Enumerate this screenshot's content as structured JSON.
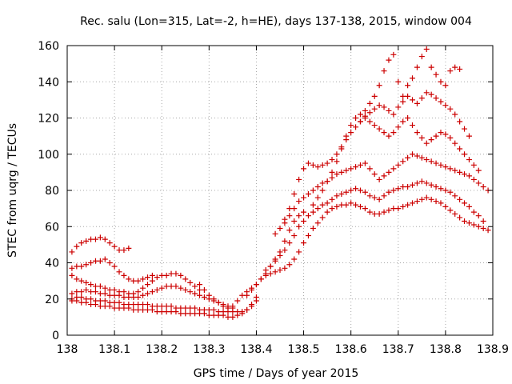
{
  "chart_data": {
    "type": "scatter",
    "title": "Rec. salu (Lon=315, Lat=-2, h=HE), days 137-138, 2015, window 004",
    "xlabel": "GPS time / Days of year 2015",
    "ylabel": "STEC from uqrg / TECUs",
    "xlim": [
      138,
      138.9
    ],
    "ylim": [
      0,
      160
    ],
    "xticks": [
      "138",
      "138.1",
      "138.2",
      "138.3",
      "138.4",
      "138.5",
      "138.6",
      "138.7",
      "138.8",
      "138.9"
    ],
    "yticks": [
      "0",
      "20",
      "40",
      "60",
      "80",
      "100",
      "120",
      "140",
      "160"
    ],
    "grid": true,
    "marker": "plus",
    "color": "#cc0000",
    "series": [
      {
        "x": [
          138.01,
          138.02,
          138.03,
          138.04,
          138.05,
          138.06,
          138.07,
          138.08,
          138.09,
          138.1,
          138.11,
          138.12,
          138.13
        ],
        "y": [
          46,
          49,
          51,
          52,
          53,
          53,
          54,
          53,
          51,
          49,
          47,
          47,
          48
        ]
      },
      {
        "x": [
          138.01,
          138.02,
          138.03,
          138.04,
          138.05,
          138.06,
          138.07,
          138.08,
          138.09,
          138.1,
          138.11,
          138.12,
          138.13,
          138.14,
          138.15,
          138.16,
          138.17,
          138.18
        ],
        "y": [
          37,
          38,
          38,
          39,
          40,
          41,
          41,
          42,
          40,
          38,
          35,
          33,
          31,
          30,
          30,
          31,
          32,
          33
        ]
      },
      {
        "x": [
          138.01,
          138.02,
          138.03,
          138.04,
          138.05,
          138.06,
          138.07,
          138.08,
          138.09,
          138.1,
          138.11,
          138.12,
          138.13,
          138.14,
          138.15,
          138.16,
          138.17,
          138.18,
          138.19,
          138.2,
          138.21,
          138.22,
          138.23,
          138.24,
          138.25,
          138.26,
          138.27,
          138.28
        ],
        "y": [
          33,
          31,
          30,
          29,
          28,
          27,
          27,
          26,
          25,
          25,
          24,
          24,
          23,
          23,
          24,
          26,
          28,
          30,
          32,
          33,
          33,
          34,
          34,
          33,
          31,
          29,
          27,
          25
        ]
      },
      {
        "x": [
          138.01,
          138.02,
          138.03,
          138.04,
          138.05,
          138.06,
          138.07,
          138.08,
          138.09,
          138.1,
          138.11,
          138.12,
          138.13,
          138.14,
          138.15,
          138.16,
          138.17,
          138.18,
          138.19,
          138.2,
          138.21,
          138.22,
          138.23,
          138.24,
          138.25,
          138.26,
          138.27,
          138.28,
          138.29,
          138.3,
          138.31,
          138.32,
          138.33,
          138.34,
          138.35
        ],
        "y": [
          23,
          24,
          24,
          25,
          24,
          24,
          23,
          23,
          22,
          22,
          22,
          21,
          21,
          21,
          21,
          22,
          23,
          24,
          25,
          26,
          27,
          27,
          27,
          26,
          25,
          24,
          23,
          22,
          21,
          20,
          19,
          18,
          17,
          16,
          15
        ]
      },
      {
        "x": [
          138.01,
          138.02,
          138.03,
          138.04,
          138.05,
          138.06,
          138.07,
          138.08,
          138.09,
          138.1,
          138.11,
          138.12,
          138.13,
          138.14,
          138.15,
          138.16,
          138.17,
          138.18,
          138.19,
          138.2,
          138.21,
          138.22,
          138.23,
          138.24,
          138.25,
          138.26,
          138.27,
          138.28,
          138.29,
          138.3,
          138.31,
          138.32,
          138.33,
          138.34,
          138.35,
          138.36,
          138.37,
          138.38,
          138.39,
          138.4
        ],
        "y": [
          20,
          21,
          21,
          20,
          20,
          19,
          19,
          19,
          18,
          18,
          18,
          17,
          17,
          17,
          17,
          17,
          17,
          16,
          16,
          16,
          16,
          16,
          15,
          15,
          15,
          15,
          15,
          14,
          14,
          14,
          14,
          13,
          13,
          13,
          13,
          13,
          13,
          14,
          16,
          19
        ]
      },
      {
        "x": [
          138.01,
          138.02,
          138.03,
          138.04,
          138.05,
          138.06,
          138.07,
          138.08,
          138.09,
          138.1,
          138.11,
          138.12,
          138.13,
          138.14,
          138.15,
          138.16,
          138.17,
          138.18,
          138.19,
          138.2,
          138.21,
          138.22,
          138.23,
          138.24,
          138.25,
          138.26,
          138.27,
          138.28,
          138.29,
          138.3,
          138.31,
          138.32,
          138.33,
          138.34,
          138.35,
          138.36,
          138.37,
          138.38,
          138.39,
          138.4
        ],
        "y": [
          19,
          19,
          18,
          18,
          17,
          17,
          16,
          16,
          16,
          15,
          15,
          15,
          15,
          14,
          14,
          14,
          14,
          14,
          13,
          13,
          13,
          13,
          13,
          12,
          12,
          12,
          12,
          12,
          12,
          11,
          11,
          11,
          11,
          10,
          10,
          11,
          12,
          14,
          17,
          21
        ]
      },
      {
        "x": [
          138.28,
          138.29,
          138.3,
          138.31,
          138.32,
          138.33,
          138.34,
          138.35,
          138.36,
          138.37,
          138.38,
          138.39,
          138.4,
          138.41,
          138.42,
          138.43,
          138.44,
          138.45,
          138.46,
          138.47,
          138.48,
          138.49,
          138.5
        ],
        "y": [
          28,
          25,
          22,
          20,
          18,
          16,
          15,
          16,
          19,
          22,
          24,
          26,
          28,
          31,
          34,
          38,
          42,
          46,
          52,
          58,
          63,
          66,
          68
        ]
      },
      {
        "x": [
          138.38,
          138.39,
          138.4,
          138.41,
          138.42,
          138.43,
          138.44,
          138.45,
          138.46,
          138.47,
          138.48,
          138.49,
          138.5,
          138.51,
          138.52,
          138.53,
          138.54,
          138.55,
          138.56,
          138.57,
          138.58,
          138.59,
          138.6,
          138.61,
          138.62,
          138.63,
          138.64,
          138.65,
          138.66,
          138.67,
          138.68,
          138.69,
          138.7,
          138.71,
          138.72,
          138.73,
          138.74,
          138.75,
          138.76,
          138.77,
          138.78,
          138.79,
          138.8,
          138.81,
          138.82,
          138.83,
          138.84,
          138.85,
          138.86,
          138.87,
          138.88,
          138.89
        ],
        "y": [
          22,
          25,
          28,
          31,
          33,
          34,
          35,
          36,
          37,
          39,
          42,
          46,
          51,
          55,
          59,
          62,
          65,
          68,
          70,
          71,
          72,
          72,
          73,
          72,
          71,
          70,
          68,
          67,
          67,
          68,
          69,
          70,
          70,
          71,
          72,
          73,
          74,
          75,
          76,
          75,
          74,
          73,
          71,
          69,
          67,
          65,
          63,
          62,
          61,
          60,
          59,
          58
        ]
      },
      {
        "x": [
          138.42,
          138.43,
          138.44,
          138.45,
          138.46,
          138.47,
          138.48,
          138.49,
          138.5,
          138.51,
          138.52,
          138.53,
          138.54,
          138.55,
          138.56,
          138.57,
          138.58,
          138.59,
          138.6,
          138.61,
          138.62,
          138.63,
          138.64,
          138.65,
          138.66,
          138.67,
          138.68,
          138.69,
          138.7,
          138.71,
          138.72,
          138.73,
          138.74,
          138.75,
          138.76,
          138.77,
          138.78,
          138.79,
          138.8,
          138.81,
          138.82,
          138.83,
          138.84,
          138.85,
          138.86,
          138.87,
          138.88
        ],
        "y": [
          36,
          38,
          41,
          44,
          47,
          51,
          55,
          60,
          63,
          66,
          68,
          70,
          72,
          73,
          75,
          77,
          78,
          79,
          80,
          81,
          80,
          79,
          77,
          76,
          75,
          77,
          79,
          80,
          81,
          82,
          82,
          83,
          84,
          85,
          84,
          83,
          82,
          81,
          80,
          79,
          77,
          75,
          73,
          71,
          68,
          66,
          63
        ]
      },
      {
        "x": [
          138.44,
          138.45,
          138.46,
          138.47,
          138.48,
          138.49,
          138.5,
          138.51,
          138.52,
          138.53,
          138.54,
          138.55,
          138.56,
          138.57,
          138.58,
          138.59,
          138.6,
          138.61,
          138.62,
          138.63,
          138.64,
          138.65,
          138.66,
          138.67,
          138.68,
          138.69,
          138.7,
          138.71,
          138.72,
          138.73,
          138.74,
          138.75,
          138.76,
          138.77,
          138.78,
          138.79,
          138.8,
          138.81,
          138.82,
          138.83,
          138.84,
          138.85,
          138.86,
          138.87,
          138.88,
          138.89
        ],
        "y": [
          56,
          59,
          62,
          66,
          70,
          74,
          76,
          78,
          80,
          82,
          84,
          85,
          87,
          89,
          90,
          91,
          92,
          93,
          94,
          95,
          92,
          89,
          86,
          88,
          90,
          92,
          94,
          96,
          98,
          100,
          99,
          98,
          97,
          96,
          95,
          94,
          93,
          92,
          91,
          90,
          89,
          88,
          86,
          84,
          82,
          80
        ]
      },
      {
        "x": [
          138.46,
          138.47,
          138.48,
          138.49,
          138.5,
          138.51,
          138.52,
          138.53,
          138.54,
          138.55,
          138.56,
          138.57,
          138.58,
          138.59,
          138.6,
          138.61,
          138.62,
          138.63,
          138.64,
          138.65,
          138.66,
          138.67,
          138.68,
          138.69,
          138.7,
          138.71,
          138.72,
          138.73,
          138.74,
          138.75,
          138.76,
          138.77,
          138.78,
          138.79,
          138.8,
          138.81,
          138.82,
          138.83,
          138.84,
          138.85,
          138.86,
          138.87
        ],
        "y": [
          64,
          70,
          78,
          86,
          92,
          95,
          94,
          93,
          94,
          95,
          97,
          100,
          104,
          108,
          112,
          115,
          118,
          120,
          118,
          116,
          114,
          112,
          110,
          112,
          115,
          118,
          120,
          116,
          112,
          109,
          106,
          108,
          110,
          112,
          111,
          109,
          106,
          103,
          100,
          97,
          94,
          91
        ]
      },
      {
        "x": [
          138.52,
          138.53,
          138.54,
          138.55,
          138.56,
          138.57,
          138.58,
          138.59,
          138.6,
          138.61,
          138.62,
          138.63,
          138.64,
          138.65,
          138.66,
          138.67,
          138.68,
          138.69,
          138.7,
          138.71,
          138.72,
          138.73,
          138.74,
          138.75,
          138.76,
          138.77,
          138.78,
          138.79,
          138.8,
          138.81,
          138.82,
          138.83,
          138.84,
          138.85
        ],
        "y": [
          72,
          76,
          80,
          85,
          90,
          96,
          103,
          110,
          116,
          120,
          122,
          121,
          123,
          125,
          127,
          126,
          124,
          122,
          126,
          129,
          132,
          130,
          128,
          131,
          134,
          133,
          131,
          129,
          127,
          125,
          122,
          118,
          114,
          110
        ]
      },
      {
        "x": [
          138.62,
          138.63,
          138.64,
          138.65,
          138.66,
          138.67,
          138.68,
          138.69,
          138.7,
          138.71,
          138.72,
          138.73,
          138.74,
          138.75,
          138.76,
          138.77,
          138.78,
          138.79,
          138.8,
          138.81,
          138.82,
          138.83
        ],
        "y": [
          118,
          124,
          128,
          132,
          138,
          146,
          152,
          155,
          140,
          132,
          138,
          142,
          148,
          154,
          158,
          148,
          144,
          140,
          138,
          146,
          148,
          147
        ]
      }
    ]
  }
}
